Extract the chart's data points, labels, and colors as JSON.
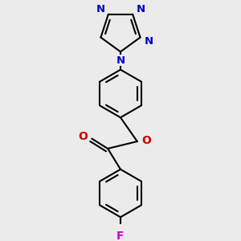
{
  "bg_color": "#ebebeb",
  "bond_color": "#000000",
  "nitrogen_color": "#0000cc",
  "oxygen_color": "#cc0000",
  "fluorine_color": "#cc00cc",
  "bond_width": 1.5,
  "figsize": [
    3.0,
    3.0
  ],
  "dpi": 100,
  "xlim": [
    -1.8,
    1.8
  ],
  "ylim": [
    -2.8,
    2.8
  ]
}
